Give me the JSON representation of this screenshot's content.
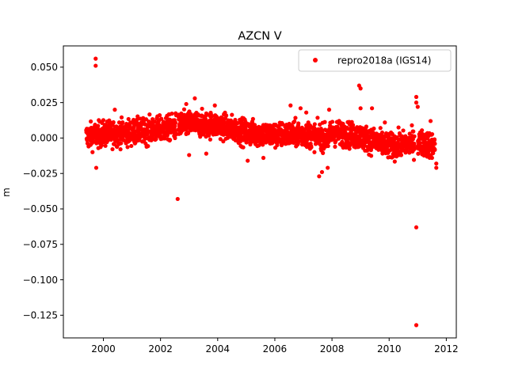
{
  "chart_data": {
    "type": "scatter",
    "title": "AZCN V",
    "xlabel": "",
    "ylabel": "m",
    "xlim": [
      1998.6,
      2012.35
    ],
    "ylim": [
      -0.141,
      0.065
    ],
    "x_ticks": [
      2000,
      2002,
      2004,
      2006,
      2008,
      2010,
      2012
    ],
    "x_tick_labels": [
      "2000",
      "2002",
      "2004",
      "2006",
      "2008",
      "2010",
      "2012"
    ],
    "y_ticks": [
      0.05,
      0.025,
      0.0,
      -0.025,
      -0.05,
      -0.075,
      -0.1,
      -0.125
    ],
    "y_tick_labels": [
      "0.050",
      "0.025",
      "0.000",
      "−0.025",
      "−0.050",
      "−0.075",
      "−0.100",
      "−0.125"
    ],
    "grid": false,
    "legend": {
      "position": "top-right",
      "entries": [
        "repro2018a (IGS14)"
      ]
    },
    "series": [
      {
        "name": "repro2018a (IGS14)",
        "color": "#ff0000",
        "marker": "circle",
        "trend": [
          {
            "x": 1999.4,
            "y": 0.001
          },
          {
            "x": 2000.0,
            "y": 0.003
          },
          {
            "x": 2001.0,
            "y": 0.004
          },
          {
            "x": 2002.0,
            "y": 0.006
          },
          {
            "x": 2003.0,
            "y": 0.01
          },
          {
            "x": 2004.0,
            "y": 0.009
          },
          {
            "x": 2005.0,
            "y": 0.004
          },
          {
            "x": 2006.0,
            "y": 0.002
          },
          {
            "x": 2007.0,
            "y": 0.003
          },
          {
            "x": 2007.9,
            "y": 0.0
          },
          {
            "x": 2008.0,
            "y": 0.004
          },
          {
            "x": 2009.0,
            "y": 0.001
          },
          {
            "x": 2010.0,
            "y": -0.006
          },
          {
            "x": 2011.0,
            "y": -0.003
          },
          {
            "x": 2011.6,
            "y": -0.005
          }
        ],
        "noise": 0.0045,
        "outliers": [
          {
            "x": 1999.73,
            "y": 0.056
          },
          {
            "x": 1999.73,
            "y": 0.051
          },
          {
            "x": 1999.75,
            "y": -0.021
          },
          {
            "x": 2000.4,
            "y": 0.02
          },
          {
            "x": 2002.6,
            "y": -0.043
          },
          {
            "x": 2002.9,
            "y": 0.024
          },
          {
            "x": 2003.2,
            "y": 0.028
          },
          {
            "x": 2003.0,
            "y": -0.012
          },
          {
            "x": 2003.6,
            "y": -0.011
          },
          {
            "x": 2003.9,
            "y": 0.023
          },
          {
            "x": 2005.05,
            "y": -0.016
          },
          {
            "x": 2005.6,
            "y": -0.014
          },
          {
            "x": 2006.55,
            "y": 0.023
          },
          {
            "x": 2006.9,
            "y": 0.021
          },
          {
            "x": 2007.1,
            "y": 0.018
          },
          {
            "x": 2007.55,
            "y": -0.027
          },
          {
            "x": 2007.65,
            "y": -0.024
          },
          {
            "x": 2007.85,
            "y": -0.021
          },
          {
            "x": 2007.9,
            "y": 0.02
          },
          {
            "x": 2008.95,
            "y": 0.037
          },
          {
            "x": 2009.0,
            "y": 0.035
          },
          {
            "x": 2009.0,
            "y": 0.021
          },
          {
            "x": 2009.4,
            "y": 0.021
          },
          {
            "x": 2009.85,
            "y": 0.011
          },
          {
            "x": 2010.95,
            "y": 0.029
          },
          {
            "x": 2010.95,
            "y": 0.025
          },
          {
            "x": 2011.0,
            "y": 0.022
          },
          {
            "x": 2010.95,
            "y": -0.063
          },
          {
            "x": 2010.95,
            "y": -0.132
          },
          {
            "x": 2011.45,
            "y": 0.012
          },
          {
            "x": 2011.5,
            "y": -0.014
          },
          {
            "x": 2011.65,
            "y": -0.021
          },
          {
            "x": 2011.65,
            "y": -0.018
          },
          {
            "x": 2011.6,
            "y": -0.004
          }
        ]
      }
    ]
  }
}
